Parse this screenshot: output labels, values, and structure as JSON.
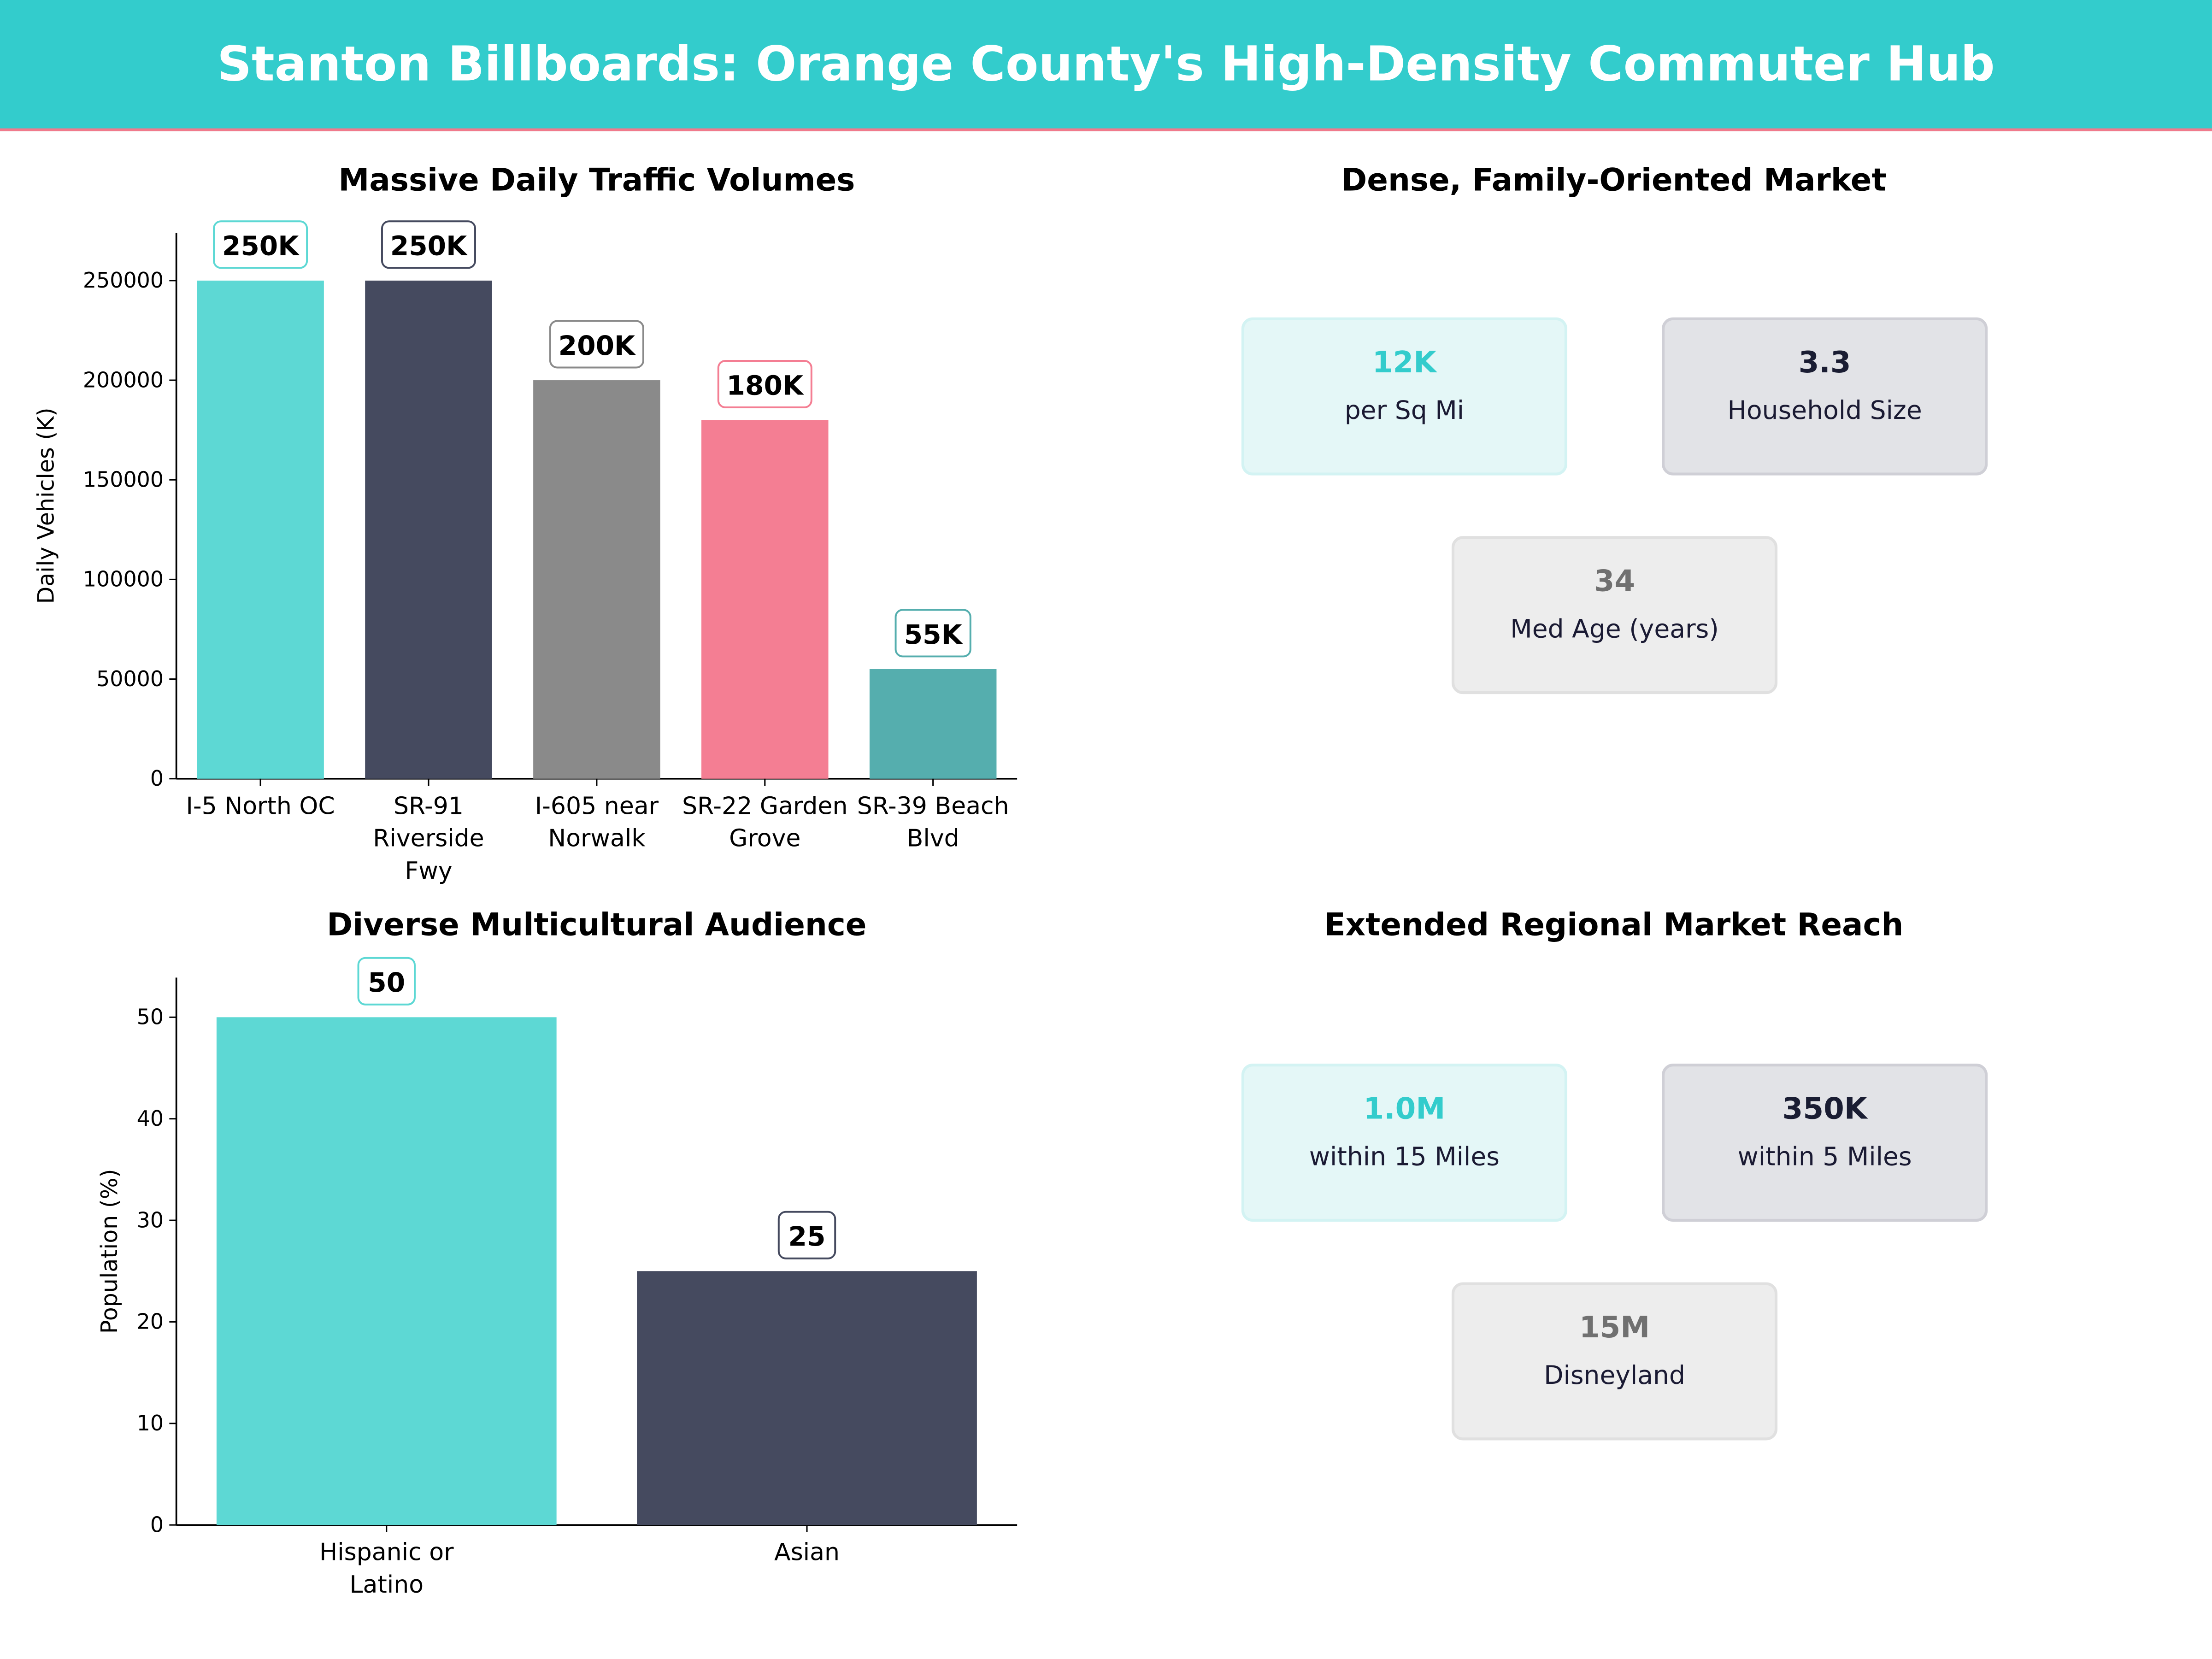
{
  "header": {
    "title": "Stanton Billboards: Orange County's High-Density Commuter Hub"
  },
  "colors": {
    "header_bg": "#33CCCC",
    "accent_line": "#F07A8C"
  },
  "chart_data": [
    {
      "type": "bar",
      "title": "Massive Daily Traffic Volumes",
      "xlabel": "",
      "ylabel": "Daily Vehicles (K)",
      "categories": [
        "I-5 North OC",
        "SR-91 Riverside Fwy",
        "I-605 near Norwalk",
        "SR-22 Garden Grove",
        "SR-39 Beach Blvd"
      ],
      "category_lines": [
        [
          "I-5 North OC"
        ],
        [
          "SR-91",
          "Riverside",
          "Fwy"
        ],
        [
          "I-605 near",
          "Norwalk"
        ],
        [
          "SR-22 Garden",
          "Grove"
        ],
        [
          "SR-39 Beach",
          "Blvd"
        ]
      ],
      "values": [
        250000,
        250000,
        200000,
        180000,
        55000
      ],
      "data_labels": [
        "250K",
        "250K",
        "200K",
        "180K",
        "55K"
      ],
      "colors": [
        "#5DD8D4",
        "#454A5F",
        "#8A8A8A",
        "#F47E93",
        "#55AEAE"
      ],
      "yticks": [
        0,
        50000,
        100000,
        150000,
        200000,
        250000
      ],
      "ylim": [
        0,
        274000
      ],
      "grid": false
    },
    {
      "type": "bar",
      "title": "Diverse Multicultural Audience",
      "xlabel": "",
      "ylabel": "Population (%)",
      "categories": [
        "Hispanic or Latino",
        "Asian"
      ],
      "category_lines": [
        [
          "Hispanic or",
          "Latino"
        ],
        [
          "Asian"
        ]
      ],
      "values": [
        50,
        25
      ],
      "data_labels": [
        "50",
        "25"
      ],
      "colors": [
        "#5DD8D4",
        "#454A5F"
      ],
      "yticks": [
        0,
        10,
        20,
        30,
        40,
        50
      ],
      "ylim": [
        0,
        53.9
      ],
      "grid": false
    }
  ],
  "panels": [
    {
      "title": "Dense, Family-Oriented Market",
      "cards": [
        {
          "value": "12K",
          "label": "per Sq Mi",
          "value_color": "#33CCCC",
          "bg": "#E4F7F7",
          "border": "#D3F3F3"
        },
        {
          "value": "3.3",
          "label": "Household Size",
          "value_color": "#1A1D33",
          "bg": "#E2E3E7",
          "border": "#CFCFD6"
        },
        {
          "value": "34",
          "label": "Med Age (years)",
          "value_color": "#707070",
          "bg": "#EDEDED",
          "border": "#E0E0E0"
        }
      ]
    },
    {
      "title": "Extended Regional Market Reach",
      "cards": [
        {
          "value": "1.0M",
          "label": "within 15 Miles",
          "value_color": "#33CCCC",
          "bg": "#E4F7F7",
          "border": "#D3F3F3"
        },
        {
          "value": "350K",
          "label": "within 5 Miles",
          "value_color": "#1A1D33",
          "bg": "#E2E3E7",
          "border": "#CFCFD6"
        },
        {
          "value": "15M",
          "label": "Disneyland",
          "value_color": "#707070",
          "bg": "#EDEDED",
          "border": "#E0E0E0"
        }
      ]
    }
  ]
}
